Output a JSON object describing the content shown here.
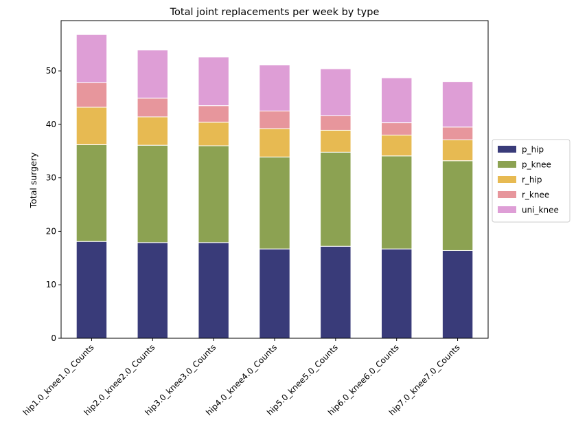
{
  "chart_data": {
    "type": "bar",
    "stacked": true,
    "title": "Total joint replacements per week by type",
    "xlabel": "",
    "ylabel": "Total surgery",
    "ylim": [
      0,
      59.4
    ],
    "yticks": [
      0,
      10,
      20,
      30,
      40,
      50
    ],
    "grid": false,
    "legend_position": "right",
    "categories": [
      "hip1.0_knee1.0_Counts",
      "hip2.0_knee2.0_Counts",
      "hip3.0_knee3.0_Counts",
      "hip4.0_knee4.0_Counts",
      "hip5.0_knee5.0_Counts",
      "hip6.0_knee6.0_Counts",
      "hip7.0_knee7.0_Counts"
    ],
    "series": [
      {
        "name": "p_hip",
        "color": "#393b79",
        "values": [
          18.1,
          17.9,
          17.9,
          16.7,
          17.2,
          16.7,
          16.4
        ]
      },
      {
        "name": "p_knee",
        "color": "#8ca252",
        "values": [
          18.1,
          18.2,
          18.1,
          17.2,
          17.6,
          17.4,
          16.8
        ]
      },
      {
        "name": "r_hip",
        "color": "#e7ba52",
        "values": [
          7.0,
          5.3,
          4.4,
          5.3,
          4.1,
          3.9,
          3.9
        ]
      },
      {
        "name": "r_knee",
        "color": "#e7969c",
        "values": [
          4.6,
          3.5,
          3.1,
          3.3,
          2.7,
          2.3,
          2.4
        ]
      },
      {
        "name": "uni_knee",
        "color": "#de9ed6",
        "values": [
          9.0,
          9.0,
          9.1,
          8.6,
          8.8,
          8.4,
          8.5
        ]
      }
    ]
  }
}
